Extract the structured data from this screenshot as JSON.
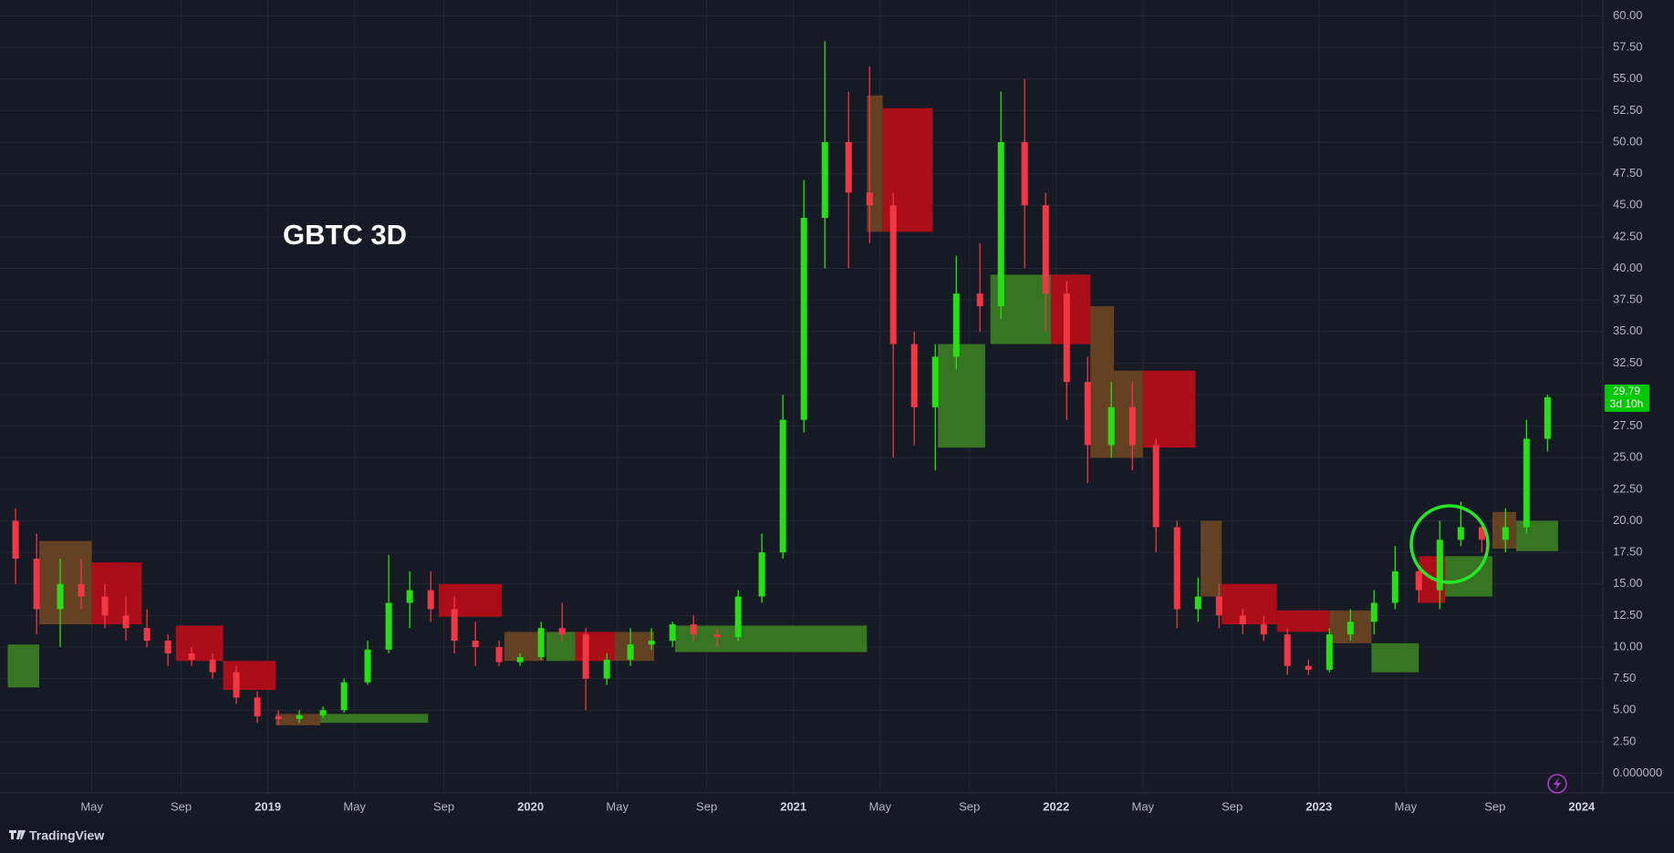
{
  "chart_data": {
    "type": "candlestick",
    "title": "GBTC 3D",
    "up_color": "#26e013",
    "down_color": "#f23645",
    "x": [
      2018.04,
      2018.12,
      2018.21,
      2018.29,
      2018.38,
      2018.46,
      2018.54,
      2018.62,
      2018.71,
      2018.79,
      2018.88,
      2018.96,
      2019.04,
      2019.12,
      2019.21,
      2019.29,
      2019.38,
      2019.46,
      2019.54,
      2019.62,
      2019.71,
      2019.79,
      2019.88,
      2019.96,
      2020.04,
      2020.12,
      2020.21,
      2020.29,
      2020.38,
      2020.46,
      2020.54,
      2020.62,
      2020.71,
      2020.79,
      2020.88,
      2020.96,
      2021.04,
      2021.12,
      2021.21,
      2021.29,
      2021.38,
      2021.46,
      2021.54,
      2021.62,
      2021.71,
      2021.79,
      2021.88,
      2021.96,
      2022.04,
      2022.12,
      2022.21,
      2022.29,
      2022.38,
      2022.46,
      2022.54,
      2022.62,
      2022.71,
      2022.79,
      2022.88,
      2022.96,
      2023.04,
      2023.12,
      2023.21,
      2023.29,
      2023.38,
      2023.46,
      2023.54,
      2023.62,
      2023.71,
      2023.79,
      2023.87
    ],
    "open": [
      20,
      17,
      13,
      15,
      14,
      12.5,
      11.5,
      10.5,
      9.5,
      9,
      8,
      6,
      4.5,
      4.3,
      4.6,
      5,
      7.2,
      9.8,
      13.5,
      14.5,
      13,
      10.5,
      10,
      8.8,
      9.2,
      11.5,
      11,
      7.5,
      9,
      10.2,
      10.5,
      11.8,
      11,
      10.8,
      14,
      17.5,
      28,
      44,
      50,
      46,
      45,
      34,
      29,
      33,
      38,
      37,
      50,
      45,
      38,
      31,
      26,
      29,
      26,
      19.5,
      13,
      14,
      12.5,
      11.8,
      11,
      8.5,
      8.2,
      11,
      12,
      13.5,
      16,
      14.5,
      18.5,
      19.5,
      18.5,
      19.5,
      26.5
    ],
    "high": [
      21,
      19,
      17,
      17,
      15,
      14,
      13,
      11,
      10,
      9.5,
      8.5,
      6.5,
      5,
      5,
      5.3,
      7.5,
      10.5,
      17.3,
      16,
      16,
      14,
      12,
      10.5,
      9.5,
      12,
      13.5,
      11.5,
      9.5,
      11.5,
      11.5,
      12,
      12.5,
      11.5,
      14.5,
      19,
      30,
      47,
      58,
      54,
      56,
      46,
      35,
      34,
      41,
      42,
      54,
      55,
      46,
      39,
      33,
      31,
      31,
      26.5,
      20,
      15.5,
      15,
      13,
      12.5,
      11.5,
      9,
      11.5,
      13,
      14.5,
      18,
      16.5,
      20,
      21.5,
      20,
      21,
      28,
      30
    ],
    "low": [
      15,
      11,
      10,
      13,
      11.5,
      10.5,
      10,
      8.5,
      8.5,
      7.5,
      5.5,
      4,
      3.8,
      4,
      4.4,
      4.8,
      7,
      9.5,
      11.5,
      12,
      9.5,
      8.5,
      8.5,
      8.5,
      9,
      10.5,
      5,
      7,
      8.5,
      9.8,
      10,
      10.5,
      10,
      10.5,
      13.5,
      17,
      27,
      40,
      40,
      42,
      25,
      26,
      24,
      32,
      35,
      36,
      40,
      35,
      28,
      23,
      25,
      24,
      17.5,
      11.5,
      12,
      11.5,
      11,
      10.5,
      7.8,
      7.8,
      8,
      10.5,
      11,
      13,
      13.5,
      13,
      18,
      17.5,
      17.5,
      19,
      25.5
    ],
    "close": [
      17,
      13,
      15,
      14,
      12.5,
      11.5,
      10.5,
      9.5,
      9,
      8,
      6,
      4.5,
      4.3,
      4.6,
      5,
      7.2,
      9.8,
      13.5,
      14.5,
      13,
      10.5,
      10,
      8.8,
      9.2,
      11.5,
      11,
      7.5,
      9,
      10.2,
      10.5,
      11.8,
      11,
      10.8,
      14,
      17.5,
      28,
      44,
      50,
      46,
      45,
      34,
      29,
      33,
      38,
      37,
      50,
      45,
      38,
      31,
      26,
      29,
      26,
      19.5,
      13,
      14,
      12.5,
      11.8,
      11,
      8.5,
      8.2,
      11,
      12,
      13.5,
      16,
      14.5,
      18.5,
      19.5,
      18.5,
      19.5,
      26.5,
      29.79
    ],
    "countdown": "3d 10h",
    "bands": [
      {
        "x": [
          2018.01,
          2018.13
        ],
        "top": 10.2,
        "bottom": 6.8,
        "color": "#3b7d23"
      },
      {
        "x": [
          2018.13,
          2018.33
        ],
        "top": 18.4,
        "bottom": 11.8,
        "color": "#6b4423"
      },
      {
        "x": [
          2018.33,
          2018.52
        ],
        "top": 16.7,
        "bottom": 11.8,
        "color": "#b80d17"
      },
      {
        "x": [
          2018.65,
          2018.83
        ],
        "top": 11.7,
        "bottom": 8.9,
        "color": "#b80d17"
      },
      {
        "x": [
          2018.83,
          2019.03
        ],
        "top": 8.9,
        "bottom": 6.6,
        "color": "#b80d17"
      },
      {
        "x": [
          2019.03,
          2019.2
        ],
        "top": 4.7,
        "bottom": 3.8,
        "color": "#6b4423"
      },
      {
        "x": [
          2019.2,
          2019.61
        ],
        "top": 4.7,
        "bottom": 4.0,
        "color": "#3b7d23"
      },
      {
        "x": [
          2019.65,
          2019.89
        ],
        "top": 15.0,
        "bottom": 12.4,
        "color": "#b80d17"
      },
      {
        "x": [
          2019.9,
          2020.05
        ],
        "top": 11.2,
        "bottom": 8.9,
        "color": "#6b4423"
      },
      {
        "x": [
          2020.06,
          2020.17
        ],
        "top": 11.2,
        "bottom": 8.9,
        "color": "#3b7d23"
      },
      {
        "x": [
          2020.17,
          2020.32
        ],
        "top": 11.2,
        "bottom": 8.9,
        "color": "#b80d17"
      },
      {
        "x": [
          2020.32,
          2020.47
        ],
        "top": 11.2,
        "bottom": 8.9,
        "color": "#6b4423"
      },
      {
        "x": [
          2020.55,
          2021.28
        ],
        "top": 11.7,
        "bottom": 9.6,
        "color": "#3b7d23"
      },
      {
        "x": [
          2021.28,
          2021.34
        ],
        "top": 53.7,
        "bottom": 42.9,
        "color": "#6b4423"
      },
      {
        "x": [
          2021.34,
          2021.53
        ],
        "top": 52.7,
        "bottom": 42.9,
        "color": "#b80d17"
      },
      {
        "x": [
          2021.55,
          2021.73
        ],
        "top": 34.0,
        "bottom": 25.8,
        "color": "#3b7d23"
      },
      {
        "x": [
          2021.75,
          2021.98
        ],
        "top": 39.5,
        "bottom": 34.0,
        "color": "#3b7d23"
      },
      {
        "x": [
          2021.98,
          2022.13
        ],
        "top": 39.5,
        "bottom": 34.0,
        "color": "#b80d17"
      },
      {
        "x": [
          2022.13,
          2022.22
        ],
        "top": 37.0,
        "bottom": 25.0,
        "color": "#6b4423"
      },
      {
        "x": [
          2022.22,
          2022.33
        ],
        "top": 31.9,
        "bottom": 25.0,
        "color": "#6b4423"
      },
      {
        "x": [
          2022.33,
          2022.53
        ],
        "top": 31.9,
        "bottom": 25.8,
        "color": "#b80d17"
      },
      {
        "x": [
          2022.55,
          2022.63
        ],
        "top": 20.0,
        "bottom": 14.0,
        "color": "#6b4423"
      },
      {
        "x": [
          2022.63,
          2022.84
        ],
        "top": 15.0,
        "bottom": 11.8,
        "color": "#b80d17"
      },
      {
        "x": [
          2022.84,
          2023.04
        ],
        "top": 12.9,
        "bottom": 11.2,
        "color": "#b80d17"
      },
      {
        "x": [
          2023.04,
          2023.2
        ],
        "top": 12.9,
        "bottom": 10.3,
        "color": "#6b4423"
      },
      {
        "x": [
          2023.2,
          2023.38
        ],
        "top": 10.3,
        "bottom": 8.0,
        "color": "#3b7d23"
      },
      {
        "x": [
          2023.38,
          2023.48
        ],
        "top": 17.2,
        "bottom": 13.5,
        "color": "#b80d17"
      },
      {
        "x": [
          2023.48,
          2023.66
        ],
        "top": 17.2,
        "bottom": 14.0,
        "color": "#3b7d23"
      },
      {
        "x": [
          2023.66,
          2023.75
        ],
        "top": 20.7,
        "bottom": 17.8,
        "color": "#6b4423"
      },
      {
        "x": [
          2023.75,
          2023.91
        ],
        "top": 20.0,
        "bottom": 17.6,
        "color": "#3b7d23"
      }
    ],
    "xlim": [
      2018.012,
      2024.077
    ],
    "xticks": [
      {
        "value": 2018.33,
        "label": "May"
      },
      {
        "value": 2018.67,
        "label": "Sep"
      },
      2019,
      {
        "value": 2019.33,
        "label": "May"
      },
      {
        "value": 2019.67,
        "label": "Sep"
      },
      2020,
      {
        "value": 2020.33,
        "label": "May"
      },
      {
        "value": 2020.67,
        "label": "Sep"
      },
      2021,
      {
        "value": 2021.33,
        "label": "May"
      },
      {
        "value": 2021.67,
        "label": "Sep"
      },
      2022,
      {
        "value": 2022.33,
        "label": "May"
      },
      {
        "value": 2022.67,
        "label": "Sep"
      },
      2023,
      {
        "value": 2023.33,
        "label": "May"
      },
      {
        "value": 2023.67,
        "label": "Sep"
      },
      2024
    ],
    "ylim": [
      0,
      60
    ],
    "yticks": [
      {
        "value": 0,
        "label": "0.000000"
      },
      {
        "value": 2.5,
        "label": "2.50"
      },
      {
        "value": 5,
        "label": "5.00"
      },
      {
        "value": 7.5,
        "label": "7.50"
      },
      {
        "value": 10,
        "label": "10.00"
      },
      {
        "value": 12.5,
        "label": "12.50"
      },
      {
        "value": 15,
        "label": "15.00"
      },
      {
        "value": 17.5,
        "label": "17.50"
      },
      {
        "value": 20,
        "label": "20.00"
      },
      {
        "value": 22.5,
        "label": "22.50"
      },
      {
        "value": 25,
        "label": "25.00"
      },
      {
        "value": 27.5,
        "label": "27.50"
      },
      {
        "value": 30,
        "label": "30.00"
      },
      {
        "value": 32.5,
        "label": "32.50"
      },
      {
        "value": 35,
        "label": "35.00"
      },
      {
        "value": 37.5,
        "label": "37.50"
      },
      {
        "value": 40,
        "label": "40.00"
      },
      {
        "value": 42.5,
        "label": "42.50"
      },
      {
        "value": 45,
        "label": "45.00"
      },
      {
        "value": 47.5,
        "label": "47.50"
      },
      {
        "value": 50,
        "label": "50.00"
      },
      {
        "value": 52.5,
        "label": "52.50"
      },
      {
        "value": 55,
        "label": "55.00"
      },
      {
        "value": 57.5,
        "label": "57.50"
      },
      {
        "value": 60,
        "label": "60.00"
      }
    ],
    "grid": true
  },
  "footer": {
    "brand": "TradingView"
  }
}
